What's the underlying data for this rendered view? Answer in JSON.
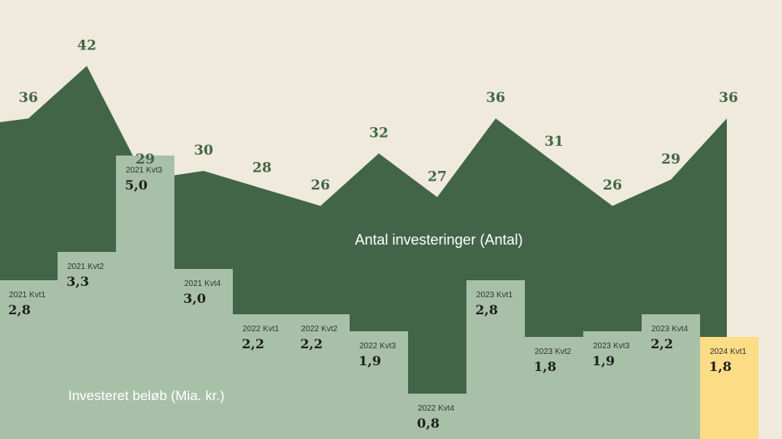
{
  "chart_data": {
    "type": "bar",
    "categories": [
      "2021 Kvt1",
      "2021 Kvt2",
      "2021 Kvt3",
      "2021 Kvt4",
      "2022 Kvt1",
      "2022 Kvt2",
      "2022 Kvt3",
      "2022 Kvt4",
      "2023 Kvt1",
      "2023 Kvt2",
      "2023 Kvt3",
      "2023 Kvt4",
      "2024 Kvt1"
    ],
    "series": [
      {
        "name": "Investeret beløb (Mia. kr.)",
        "type": "bar",
        "values": [
          2.8,
          3.3,
          5.0,
          3.0,
          2.2,
          2.2,
          1.9,
          0.8,
          2.8,
          1.8,
          1.9,
          2.2,
          1.8
        ],
        "value_labels": [
          "2,8",
          "3,3",
          "5,0",
          "3,0",
          "2,2",
          "2,2",
          "1,9",
          "0,8",
          "2,8",
          "1,8",
          "1,9",
          "2,2",
          "1,8"
        ],
        "color": "#a8c0a8",
        "highlight_color": "#fcdc84",
        "highlight_index": 12
      },
      {
        "name": "Antal investeringer (Antal)",
        "type": "area",
        "values": [
          36,
          42,
          29,
          30,
          28,
          26,
          32,
          27,
          36,
          31,
          26,
          29,
          36
        ],
        "color": "#426548"
      }
    ],
    "grid": false,
    "background": "#efeadb"
  }
}
